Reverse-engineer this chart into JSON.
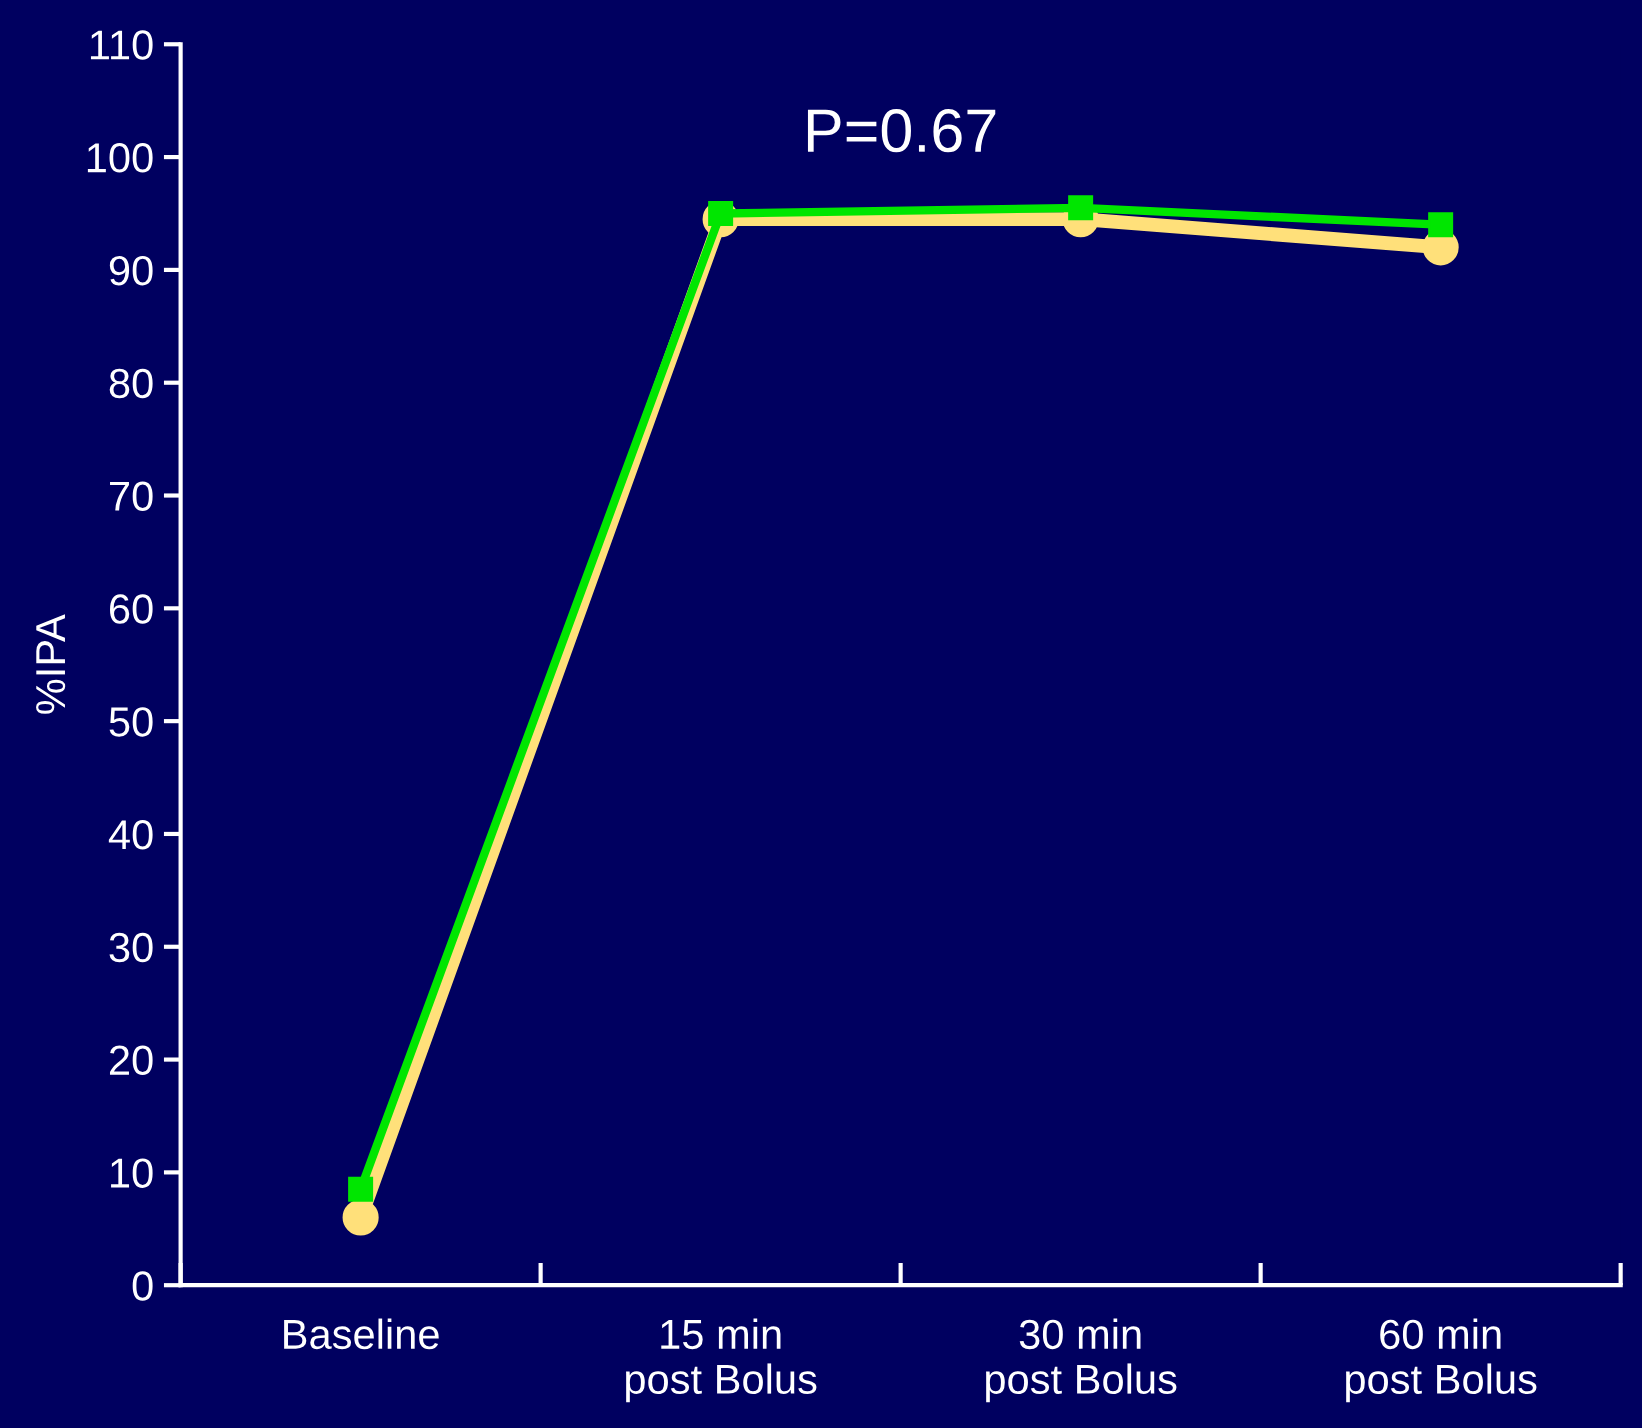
{
  "chart_data": {
    "type": "line",
    "title": "P=0.67",
    "ylabel": "%IPA",
    "categories": [
      "Baseline",
      "15 min\npost Bolus",
      "30 min\npost Bolus",
      "60 min\npost Bolus"
    ],
    "series": [
      {
        "color": "#ffe07a",
        "marker": "circle",
        "values": [
          6,
          94.5,
          94.5,
          92
        ]
      },
      {
        "color": "#00e600",
        "marker": "square",
        "values": [
          8.5,
          95,
          95.5,
          94
        ]
      }
    ],
    "ylim": [
      0,
      110
    ],
    "yticks": [
      0,
      10,
      20,
      30,
      40,
      50,
      60,
      70,
      80,
      90,
      100,
      110
    ],
    "grid": false,
    "legend": false
  }
}
